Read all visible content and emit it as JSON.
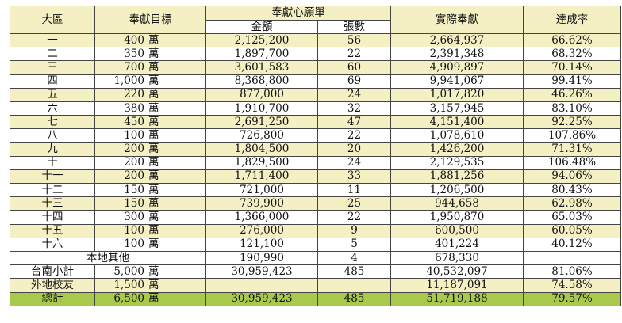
{
  "headers": {
    "district": "大區",
    "target": "奉獻目標",
    "pledge_group": "奉獻心願單",
    "amount": "金額",
    "count": "張數",
    "actual": "實際奉獻",
    "rate": "達成率"
  },
  "rows": [
    {
      "district": "一",
      "target": "400",
      "unit": "萬",
      "amount": "2,125,200",
      "count": "56",
      "actual": "2,664,937",
      "rate": "66.62%",
      "highlight": true
    },
    {
      "district": "二",
      "target": "350",
      "unit": "萬",
      "amount": "1,897,700",
      "count": "22",
      "actual": "2,391,348",
      "rate": "68.32%",
      "highlight": false
    },
    {
      "district": "三",
      "target": "700",
      "unit": "萬",
      "amount": "3,601,583",
      "count": "60",
      "actual": "4,909,897",
      "rate": "70.14%",
      "highlight": true
    },
    {
      "district": "四",
      "target": "1,000",
      "unit": "萬",
      "amount": "8,368,800",
      "count": "69",
      "actual": "9,941,067",
      "rate": "99.41%",
      "highlight": false
    },
    {
      "district": "五",
      "target": "220",
      "unit": "萬",
      "amount": "877,000",
      "count": "24",
      "actual": "1,017,820",
      "rate": "46.26%",
      "highlight": true
    },
    {
      "district": "六",
      "target": "380",
      "unit": "萬",
      "amount": "1,910,700",
      "count": "32",
      "actual": "3,157,945",
      "rate": "83.10%",
      "highlight": false
    },
    {
      "district": "七",
      "target": "450",
      "unit": "萬",
      "amount": "2,691,250",
      "count": "47",
      "actual": "4,151,400",
      "rate": "92.25%",
      "highlight": true
    },
    {
      "district": "八",
      "target": "100",
      "unit": "萬",
      "amount": "726,800",
      "count": "22",
      "actual": "1,078,610",
      "rate": "107.86%",
      "highlight": false
    },
    {
      "district": "九",
      "target": "200",
      "unit": "萬",
      "amount": "1,804,500",
      "count": "20",
      "actual": "1,426,200",
      "rate": "71.31%",
      "highlight": true
    },
    {
      "district": "十",
      "target": "200",
      "unit": "萬",
      "amount": "1,829,500",
      "count": "24",
      "actual": "2,129,535",
      "rate": "106.48%",
      "highlight": false
    },
    {
      "district": "十一",
      "target": "200",
      "unit": "萬",
      "amount": "1,711,400",
      "count": "33",
      "actual": "1,881,256",
      "rate": "94.06%",
      "highlight": true
    },
    {
      "district": "十二",
      "target": "150",
      "unit": "萬",
      "amount": "721,000",
      "count": "11",
      "actual": "1,206,500",
      "rate": "80.43%",
      "highlight": false
    },
    {
      "district": "十三",
      "target": "150",
      "unit": "萬",
      "amount": "739,900",
      "count": "25",
      "actual": "944,658",
      "rate": "62.98%",
      "highlight": true
    },
    {
      "district": "十四",
      "target": "300",
      "unit": "萬",
      "amount": "1,366,000",
      "count": "22",
      "actual": "1,950,870",
      "rate": "65.03%",
      "highlight": false
    },
    {
      "district": "十五",
      "target": "100",
      "unit": "萬",
      "amount": "276,000",
      "count": "9",
      "actual": "600,500",
      "rate": "60.05%",
      "highlight": true
    },
    {
      "district": "十六",
      "target": "100",
      "unit": "萬",
      "amount": "121,100",
      "count": "5",
      "actual": "401,224",
      "rate": "40.12%",
      "highlight": false
    }
  ],
  "local_other": {
    "label": "本地其他",
    "amount": "190,990",
    "count": "4",
    "actual": "678,330"
  },
  "tainan_subtotal": {
    "label": "台南小計",
    "target": "5,000",
    "unit": "萬",
    "amount": "30,959,423",
    "count": "485",
    "actual": "40,532,097",
    "rate": "81.06%"
  },
  "alumni": {
    "label": "外地校友",
    "target": "1,500",
    "unit": "萬",
    "actual": "11,187,091",
    "rate": "74.58%"
  },
  "total": {
    "label": "總計",
    "target": "6,500",
    "unit": "萬",
    "amount": "30,959,423",
    "count": "485",
    "actual": "51,719,188",
    "rate": "79.57%"
  },
  "colors": {
    "highlight_row": "#f5f0c3",
    "total_row": "#a8c94c",
    "border": "#444444"
  }
}
